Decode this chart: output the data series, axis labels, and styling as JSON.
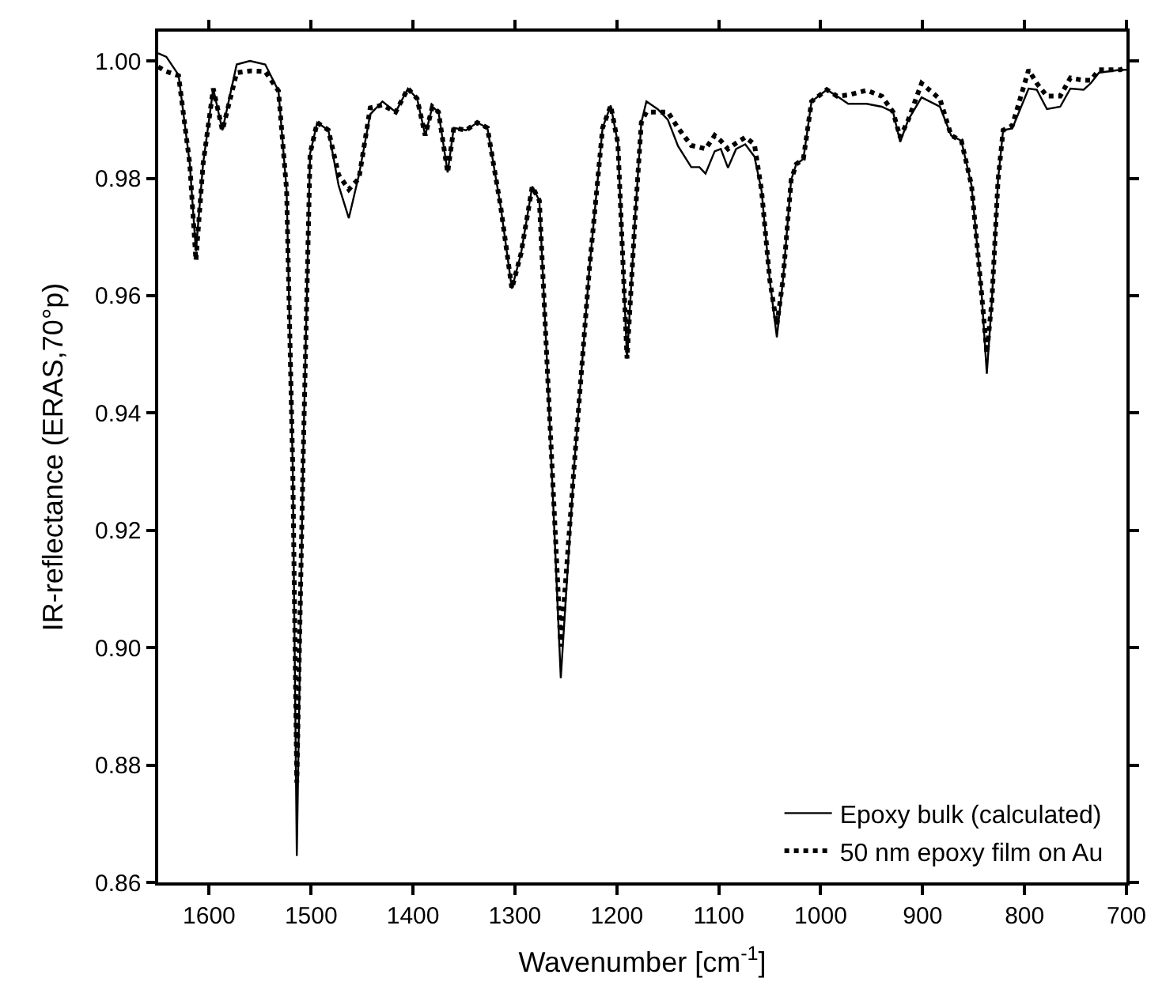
{
  "chart_data": {
    "type": "line",
    "xlabel": "Wavenumber [cm$^{-1}$]",
    "ylabel": "IR-reflectance (ERAS,70°p)",
    "x": [
      1650,
      1642,
      1630,
      1619,
      1613,
      1606,
      1596,
      1587,
      1573,
      1560,
      1545,
      1532,
      1524,
      1518,
      1514,
      1508,
      1501,
      1494,
      1483,
      1473,
      1463,
      1453,
      1442,
      1430,
      1417,
      1405,
      1396,
      1388,
      1381,
      1375,
      1366,
      1360,
      1348,
      1337,
      1327,
      1314,
      1303,
      1294,
      1283,
      1276,
      1268,
      1255,
      1242,
      1227,
      1214,
      1206,
      1199,
      1190,
      1182,
      1176,
      1171,
      1160,
      1150,
      1140,
      1127,
      1119,
      1113,
      1104,
      1098,
      1091,
      1083,
      1074,
      1065,
      1058,
      1050,
      1043,
      1037,
      1029,
      1024,
      1017,
      1009,
      994,
      984,
      973,
      955,
      940,
      929,
      922,
      914,
      901,
      883,
      872,
      862,
      852,
      842,
      837,
      832,
      826,
      821,
      812,
      796,
      788,
      778,
      765,
      755,
      742,
      735,
      727,
      706,
      700
    ],
    "series": [
      {
        "name": "Epoxy bulk (calculated)",
        "color": "#000000",
        "line_style": "solid",
        "values": [
          1.0013,
          1.0007,
          0.9976,
          0.9824,
          0.9676,
          0.9824,
          0.9953,
          0.9882,
          0.9994,
          1.0,
          0.9994,
          0.9949,
          0.9779,
          0.9307,
          0.8645,
          0.9307,
          0.9842,
          0.9895,
          0.9882,
          0.9788,
          0.9732,
          0.9806,
          0.9909,
          0.9931,
          0.9913,
          0.9953,
          0.9936,
          0.9873,
          0.9922,
          0.9913,
          0.981,
          0.9886,
          0.9882,
          0.9895,
          0.9886,
          0.9752,
          0.9612,
          0.9672,
          0.9786,
          0.9762,
          0.9467,
          0.8948,
          0.9307,
          0.9645,
          0.9886,
          0.9924,
          0.986,
          0.9493,
          0.9735,
          0.9895,
          0.9931,
          0.9918,
          0.99,
          0.9855,
          0.9819,
          0.9819,
          0.9808,
          0.9846,
          0.985,
          0.9818,
          0.985,
          0.9858,
          0.9837,
          0.9779,
          0.9627,
          0.9529,
          0.9627,
          0.9797,
          0.9824,
          0.9833,
          0.9931,
          0.9951,
          0.994,
          0.9927,
          0.9927,
          0.9922,
          0.9913,
          0.9862,
          0.99,
          0.9938,
          0.9922,
          0.9873,
          0.9864,
          0.9788,
          0.9601,
          0.9467,
          0.9592,
          0.9797,
          0.9882,
          0.9885,
          0.9953,
          0.9951,
          0.9918,
          0.9922,
          0.9953,
          0.9951,
          0.9962,
          0.998,
          0.9985,
          0.9985
        ]
      },
      {
        "name": "50 nm epoxy film on Au",
        "color": "#000000",
        "line_style": "dotted",
        "values": [
          0.999,
          0.9982,
          0.9975,
          0.9824,
          0.966,
          0.9824,
          0.9953,
          0.9882,
          0.998,
          0.9983,
          0.9982,
          0.9949,
          0.9779,
          0.9307,
          0.877,
          0.9307,
          0.9842,
          0.9895,
          0.9882,
          0.9806,
          0.9781,
          0.98,
          0.992,
          0.9925,
          0.9913,
          0.9953,
          0.9936,
          0.9873,
          0.9922,
          0.9913,
          0.981,
          0.9886,
          0.9882,
          0.9895,
          0.9886,
          0.9752,
          0.9612,
          0.9672,
          0.9786,
          0.9762,
          0.9467,
          0.9002,
          0.9307,
          0.9645,
          0.9886,
          0.9924,
          0.986,
          0.9493,
          0.9735,
          0.9895,
          0.9913,
          0.9913,
          0.9913,
          0.9886,
          0.9856,
          0.9853,
          0.985,
          0.9873,
          0.9864,
          0.985,
          0.986,
          0.987,
          0.9858,
          0.9779,
          0.9627,
          0.955,
          0.9627,
          0.9797,
          0.9824,
          0.9833,
          0.9931,
          0.9951,
          0.994,
          0.9942,
          0.995,
          0.994,
          0.9913,
          0.987,
          0.99,
          0.9962,
          0.9935,
          0.9873,
          0.9864,
          0.9788,
          0.9601,
          0.9502,
          0.9592,
          0.9797,
          0.9882,
          0.989,
          0.9985,
          0.9962,
          0.994,
          0.994,
          0.9971,
          0.9967,
          0.9967,
          0.9985,
          0.9985,
          0.999
        ]
      }
    ],
    "xlim": [
      1650,
      700
    ],
    "xticks": [
      1600,
      1500,
      1400,
      1300,
      1200,
      1100,
      1000,
      900,
      800,
      700
    ],
    "ylim": [
      0.86,
      1.005
    ],
    "yticks": [
      {
        "value": 0.86,
        "label": "0.86"
      },
      {
        "value": 0.88,
        "label": "0.88"
      },
      {
        "value": 0.9,
        "label": "0.90"
      },
      {
        "value": 0.92,
        "label": "0.92"
      },
      {
        "value": 0.94,
        "label": "0.94"
      },
      {
        "value": 0.96,
        "label": "0.96"
      },
      {
        "value": 0.98,
        "label": "0.98"
      },
      {
        "value": 1.0,
        "label": "1.00"
      }
    ],
    "legend": "bottom right"
  }
}
